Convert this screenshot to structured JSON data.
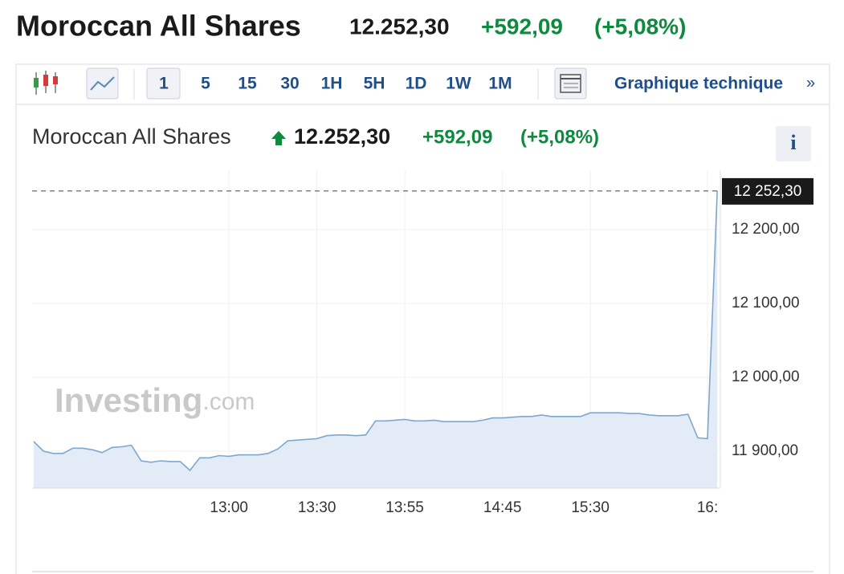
{
  "header": {
    "title": "Moroccan All Shares",
    "price": "12.252,30",
    "change": "+592,09",
    "change_pct": "(+5,08%)"
  },
  "toolbar": {
    "intervals": [
      "1",
      "5",
      "15",
      "30",
      "1H",
      "5H",
      "1D",
      "1W",
      "1M"
    ],
    "link": "Graphique technique",
    "link_arrow": "»"
  },
  "chart_data": {
    "type": "area",
    "title": "Moroccan All Shares",
    "price": "12.252,30",
    "change": "+592,09",
    "change_pct": "(+5,08%)",
    "info_button": "i",
    "watermark": {
      "brand": "Investing",
      "suffix": ".com"
    },
    "categories": [
      null,
      null,
      null,
      null,
      null,
      null,
      null,
      null,
      null,
      null,
      null,
      null,
      null,
      null,
      null,
      null,
      null,
      null,
      null,
      null,
      "13:00",
      null,
      null,
      null,
      null,
      null,
      null,
      null,
      null,
      "13:30",
      null,
      null,
      null,
      null,
      null,
      null,
      null,
      null,
      "13:55",
      null,
      null,
      null,
      null,
      null,
      null,
      null,
      null,
      null,
      "14:45",
      null,
      null,
      null,
      null,
      null,
      null,
      null,
      null,
      "15:30",
      null,
      null,
      null,
      null,
      null,
      null,
      null,
      null,
      null,
      null,
      null,
      "16:",
      null
    ],
    "series": [
      {
        "color": "#7ea7cf",
        "fill": "#e3ecf6",
        "values": [
          11913,
          11900,
          11897,
          11897,
          11904,
          11904,
          11902,
          11898,
          11905,
          11906,
          11908,
          11887,
          11885,
          11887,
          11886,
          11886,
          11874,
          11891,
          11891,
          11894,
          11893,
          11895,
          11895,
          11895,
          11897,
          11903,
          11914,
          11915,
          11916,
          11917,
          11921,
          11922,
          11922,
          11921,
          11922,
          11941,
          11941,
          11942,
          11943,
          11941,
          11941,
          11942,
          11940,
          11940,
          11940,
          11940,
          11942,
          11945,
          11945,
          11946,
          11947,
          11947,
          11949,
          11947,
          11947,
          11947,
          11947,
          11952,
          11952,
          11952,
          11952,
          11951,
          11951,
          11949,
          11948,
          11948,
          11948,
          11950,
          11918,
          11917,
          12252.3
        ],
        "value_labels": [
          null,
          null,
          null,
          null,
          null,
          null,
          null,
          null,
          null,
          null,
          null,
          null,
          null,
          null,
          null,
          null,
          null,
          null,
          null,
          null,
          null,
          null,
          null,
          null,
          null,
          null,
          null,
          null,
          null,
          null,
          null,
          null,
          null,
          null,
          null,
          null,
          null,
          null,
          null,
          null,
          null,
          null,
          null,
          null,
          null,
          null,
          null,
          null,
          null,
          null,
          null,
          null,
          null,
          null,
          null,
          null,
          null,
          null,
          null,
          null,
          null,
          null,
          null,
          null,
          null,
          null,
          null,
          null,
          null,
          null,
          "12 252,30"
        ]
      }
    ],
    "ylim": [
      11850,
      12280
    ],
    "yticks": [
      {
        "value": 11900,
        "label": "11 900,00"
      },
      {
        "value": 12000,
        "label": "12 000,00"
      },
      {
        "value": 12100,
        "label": "12 100,00"
      },
      {
        "value": 12200,
        "label": "12 200,00"
      }
    ],
    "grid": true
  }
}
